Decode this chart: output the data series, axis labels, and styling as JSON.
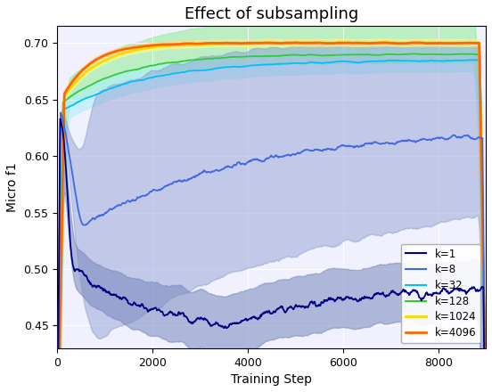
{
  "title": "Effect of subsampling",
  "xlabel": "Training Step",
  "ylabel": "Micro f1",
  "xlim": [
    0,
    9000
  ],
  "ylim": [
    0.43,
    0.715
  ],
  "yticks": [
    0.45,
    0.5,
    0.55,
    0.6,
    0.65,
    0.7
  ],
  "xticks": [
    0,
    2000,
    4000,
    6000,
    8000
  ],
  "k1_color": "#000080",
  "k8_color": "#4169E1",
  "k32_color": "#00BFFF",
  "k128_color": "#32CD32",
  "k1024_color": "#FFD700",
  "k4096_color": "#FF6600",
  "k1_fill": "#6666AA",
  "k8_fill": "#7788CC",
  "k32_fill": "#AADDEE",
  "k128_fill": "#AADDAA",
  "bg_color": "#F0F0FF",
  "title_fontsize": 13,
  "axis_fontsize": 10,
  "tick_fontsize": 9
}
